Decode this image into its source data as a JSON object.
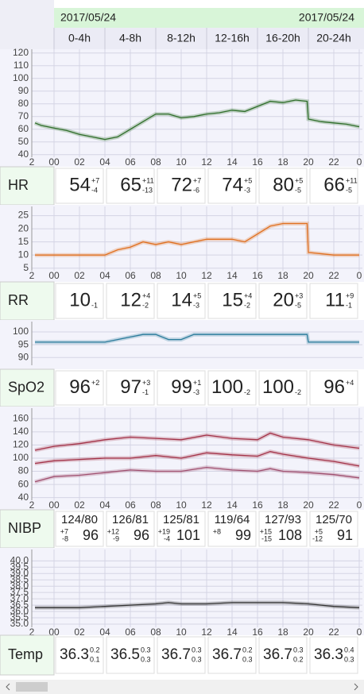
{
  "header": {
    "dates": [
      "2017/05/24",
      "2017/05/24"
    ],
    "columns": [
      "0-4h",
      "4-8h",
      "8-12h",
      "12-16h",
      "16-20h",
      "20-24h"
    ]
  },
  "chart_data": [
    {
      "type": "line",
      "ylim": [
        38,
        123
      ],
      "yticks": [
        40,
        50,
        60,
        70,
        80,
        90,
        100,
        110,
        120
      ],
      "xlim": [
        -1.75,
        24.25
      ],
      "xticks": [
        {
          "value": -2,
          "label": "2"
        },
        {
          "value": 0,
          "label": "00"
        },
        {
          "value": 2,
          "label": "02"
        },
        {
          "value": 4,
          "label": "04"
        },
        {
          "value": 6,
          "label": "06"
        },
        {
          "value": 8,
          "label": "08"
        },
        10,
        12,
        14,
        16,
        18,
        20,
        22,
        {
          "value": 24,
          "label": "0"
        }
      ],
      "x": [
        -1.5,
        -1,
        0,
        1,
        2,
        3,
        4,
        5,
        6,
        7,
        8,
        9,
        10,
        11,
        12,
        13,
        14,
        15,
        16,
        17,
        18,
        19,
        19.9,
        20,
        21,
        22,
        23,
        24
      ],
      "series": [
        {
          "color": "#2f6e2a",
          "values": [
            65,
            63,
            61,
            59,
            56,
            54,
            52,
            54,
            60,
            66,
            72,
            72,
            69,
            70,
            72,
            73,
            75,
            74,
            78,
            82,
            81,
            83,
            82,
            68,
            66,
            65,
            64,
            62
          ]
        }
      ]
    },
    {
      "type": "line",
      "ylim": [
        4,
        28.5
      ],
      "yticks": [
        5,
        10,
        15,
        20,
        25
      ],
      "xlim": [
        -1.75,
        24.25
      ],
      "xticks": [
        {
          "value": -2,
          "label": "2"
        },
        {
          "value": 0,
          "label": "00"
        },
        {
          "value": 2,
          "label": "02"
        },
        {
          "value": 4,
          "label": "04"
        },
        {
          "value": 6,
          "label": "06"
        },
        {
          "value": 8,
          "label": "08"
        },
        10,
        12,
        14,
        16,
        18,
        20,
        22,
        {
          "value": 24,
          "label": "0"
        }
      ],
      "x": [
        -1.5,
        0,
        2,
        4,
        5,
        6,
        7,
        8,
        9,
        10,
        12,
        14,
        15,
        16,
        17,
        18,
        19.9,
        20,
        22,
        24
      ],
      "series": [
        {
          "color": "#e07020",
          "values": [
            10,
            10,
            10,
            10,
            12,
            13,
            15,
            14,
            15,
            14,
            16,
            16,
            15,
            18,
            21,
            22,
            22,
            11,
            10,
            10
          ]
        }
      ]
    },
    {
      "type": "line",
      "ylim": [
        87,
        104
      ],
      "yticks": [
        90,
        95,
        100
      ],
      "xlim": [
        -1.75,
        24.25
      ],
      "x": [
        -1.5,
        0,
        2,
        4,
        5,
        6,
        7,
        8,
        9,
        10,
        11,
        12,
        14,
        16,
        18,
        19.9,
        20,
        22,
        24
      ],
      "series": [
        {
          "color": "#2a7b9b",
          "values": [
            96,
            96,
            96,
            96,
            97,
            98,
            99,
            99,
            97,
            97,
            99,
            99,
            99,
            99,
            99,
            99,
            96,
            96,
            96
          ]
        }
      ]
    },
    {
      "type": "line",
      "ylim": [
        36,
        176
      ],
      "yticks": [
        40,
        60,
        80,
        100,
        120,
        140,
        160
      ],
      "xlim": [
        -1.75,
        24.25
      ],
      "xticks": [
        {
          "value": -2,
          "label": "2"
        },
        {
          "value": 0,
          "label": "00"
        },
        {
          "value": 2,
          "label": "02"
        },
        {
          "value": 4,
          "label": "04"
        },
        {
          "value": 6,
          "label": "06"
        },
        {
          "value": 8,
          "label": "08"
        },
        10,
        12,
        14,
        16,
        18,
        20,
        22,
        {
          "value": 24,
          "label": "0"
        }
      ],
      "x": [
        -1.5,
        0,
        2,
        4,
        6,
        8,
        10,
        12,
        14,
        16,
        17,
        18,
        20,
        22,
        24
      ],
      "series": [
        {
          "color": "#a33248",
          "values": [
            112,
            118,
            122,
            128,
            132,
            130,
            128,
            135,
            130,
            128,
            138,
            132,
            128,
            120,
            115
          ]
        },
        {
          "color": "#a33248",
          "values": [
            92,
            96,
            98,
            100,
            100,
            104,
            100,
            108,
            105,
            103,
            110,
            106,
            100,
            95,
            88
          ]
        },
        {
          "color": "#a05070",
          "values": [
            64,
            72,
            74,
            78,
            82,
            80,
            80,
            86,
            82,
            80,
            84,
            80,
            78,
            75,
            70
          ]
        }
      ]
    },
    {
      "type": "line",
      "ylim": [
        34.75,
        40.9
      ],
      "yticks": [
        {
          "value": 40,
          "label": "40.0"
        },
        39.5,
        {
          "value": 39,
          "label": "39.0"
        },
        38.5,
        {
          "value": 38,
          "label": "38.0"
        },
        37.5,
        {
          "value": 37,
          "label": "37.0"
        },
        36.5,
        {
          "value": 36,
          "label": "36.0"
        },
        35.5,
        {
          "value": 35,
          "label": "35.0"
        }
      ],
      "xlim": [
        -1.75,
        24.25
      ],
      "xticks": [
        {
          "value": -2,
          "label": "2"
        },
        {
          "value": 0,
          "label": "00"
        },
        {
          "value": 2,
          "label": "02"
        },
        {
          "value": 4,
          "label": "04"
        },
        {
          "value": 6,
          "label": "06"
        },
        {
          "value": 8,
          "label": "08"
        },
        10,
        12,
        14,
        16,
        18,
        20,
        22,
        {
          "value": 24,
          "label": "0"
        }
      ],
      "x": [
        -1.5,
        0,
        2,
        4,
        6,
        8,
        9,
        10,
        12,
        14,
        16,
        18,
        20,
        22,
        24
      ],
      "series": [
        {
          "color": "#333333",
          "values": [
            36.3,
            36.3,
            36.3,
            36.4,
            36.5,
            36.6,
            36.7,
            36.6,
            36.6,
            36.7,
            36.7,
            36.7,
            36.6,
            36.4,
            36.3
          ]
        }
      ]
    }
  ],
  "summary": [
    {
      "label": "HR",
      "cells": [
        {
          "value": 54,
          "up": "+7",
          "down": "-4"
        },
        {
          "value": 65,
          "up": "+11",
          "down": "-13"
        },
        {
          "value": 72,
          "up": "+7",
          "down": "-6"
        },
        {
          "value": 74,
          "up": "+5",
          "down": "-3"
        },
        {
          "value": 80,
          "up": "+5",
          "down": "-5"
        },
        {
          "value": 66,
          "up": "+11",
          "down": "-5"
        }
      ]
    },
    {
      "label": "RR",
      "cells": [
        {
          "value": 10,
          "down": "-1"
        },
        {
          "value": 12,
          "up": "+4",
          "down": "-2"
        },
        {
          "value": 14,
          "up": "+5",
          "down": "-3"
        },
        {
          "value": 15,
          "up": "+4",
          "down": "-2"
        },
        {
          "value": 20,
          "up": "+3",
          "down": "-5"
        },
        {
          "value": 11,
          "up": "+9",
          "down": "-1"
        }
      ]
    },
    {
      "label": "SpO2",
      "cells": [
        {
          "value": 96,
          "up": "+2"
        },
        {
          "value": 97,
          "up": "+3",
          "down": "-1"
        },
        {
          "value": 99,
          "up": "+1",
          "down": "-3"
        },
        {
          "value": 100,
          "down": "-2"
        },
        {
          "value": 100,
          "down": "-2"
        },
        {
          "value": 96,
          "up": "+4"
        }
      ]
    },
    {
      "label": "NIBP",
      "cells": [
        {
          "bp": "124/80",
          "up": "+7",
          "down": "-8",
          "value": 96
        },
        {
          "bp": "126/81",
          "up": "+12",
          "down": "-9",
          "value": 96
        },
        {
          "bp": "125/81",
          "up": "+19",
          "down": "-4",
          "value": 101
        },
        {
          "bp": "119/64",
          "up": "+8",
          "value": 99
        },
        {
          "bp": "127/93",
          "up": "+15",
          "down": "-15",
          "value": 108
        },
        {
          "bp": "125/70",
          "up": "+5",
          "down": "-12",
          "value": 91
        }
      ]
    },
    {
      "label": "Temp",
      "cells": [
        {
          "value": 36.3,
          "up": "0.2",
          "down": "0.1"
        },
        {
          "value": 36.5,
          "up": "0.3",
          "down": "0.3"
        },
        {
          "value": 36.7,
          "up": "0.3",
          "down": "0.3"
        },
        {
          "value": 36.7,
          "up": "0.2",
          "down": "0.3"
        },
        {
          "value": 36.7,
          "up": "0.3",
          "down": "0.2"
        },
        {
          "value": 36.3,
          "up": "0.4",
          "down": "0.3"
        }
      ]
    }
  ]
}
